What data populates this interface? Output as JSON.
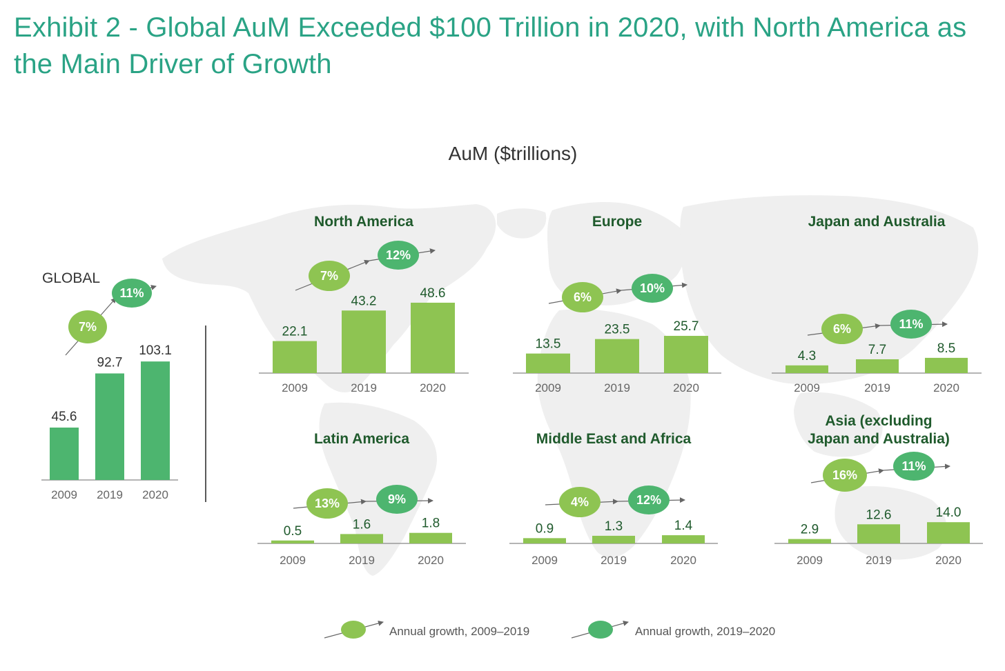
{
  "title": "Exhibit 2 - Global AuM Exceeded $100 Trillion in 2020, with North America as the Main Driver of Growth",
  "colors": {
    "title": "#2aa385",
    "bar_global": "#4db56f",
    "bar_region": "#8ec452",
    "growth_2009_2019": "#8ec452",
    "growth_2019_2020": "#4db56f",
    "region_title": "#1f5a2c",
    "map": "#efefef"
  },
  "chart_data": {
    "type": "bar",
    "title": "AuM ($trillions)",
    "categories": [
      "2009",
      "2019",
      "2020"
    ],
    "legend": {
      "growth_2009_2019": "Annual growth, 2009–2019",
      "growth_2019_2020": "Annual growth, 2019–2020",
      "placement": "bottom"
    },
    "series": [
      {
        "name": "GLOBAL",
        "values": [
          45.6,
          92.7,
          103.1
        ],
        "labels": [
          "45.6",
          "92.7",
          "103.1"
        ],
        "growth_2009_2019": "7%",
        "growth_2019_2020": "11%",
        "ylim": [
          0,
          120
        ]
      },
      {
        "name": "North America",
        "values": [
          22.1,
          43.2,
          48.6
        ],
        "labels": [
          "22.1",
          "43.2",
          "48.6"
        ],
        "growth_2009_2019": "7%",
        "growth_2019_2020": "12%",
        "ylim": [
          0,
          50
        ]
      },
      {
        "name": "Europe",
        "values": [
          13.5,
          23.5,
          25.7
        ],
        "labels": [
          "13.5",
          "23.5",
          "25.7"
        ],
        "growth_2009_2019": "6%",
        "growth_2019_2020": "10%",
        "ylim": [
          0,
          50
        ]
      },
      {
        "name": "Japan and Australia",
        "values": [
          4.3,
          7.7,
          8.5
        ],
        "labels": [
          "4.3",
          "7.7",
          "8.5"
        ],
        "growth_2009_2019": "6%",
        "growth_2019_2020": "11%",
        "ylim": [
          0,
          50
        ]
      },
      {
        "name": "Latin America",
        "values": [
          0.5,
          1.6,
          1.8
        ],
        "labels": [
          "0.5",
          "1.6",
          "1.8"
        ],
        "growth_2009_2019": "13%",
        "growth_2019_2020": "9%",
        "ylim": [
          0,
          50
        ]
      },
      {
        "name": "Middle East and Africa",
        "values": [
          0.9,
          1.3,
          1.4
        ],
        "labels": [
          "0.9",
          "1.3",
          "1.4"
        ],
        "growth_2009_2019": "4%",
        "growth_2019_2020": "12%",
        "ylim": [
          0,
          50
        ]
      },
      {
        "name": "Asia (excluding Japan and Australia)",
        "values": [
          2.9,
          12.6,
          14.0
        ],
        "labels": [
          "2.9",
          "12.6",
          "14.0"
        ],
        "growth_2009_2019": "16%",
        "growth_2019_2020": "11%",
        "ylim": [
          0,
          50
        ]
      }
    ]
  }
}
